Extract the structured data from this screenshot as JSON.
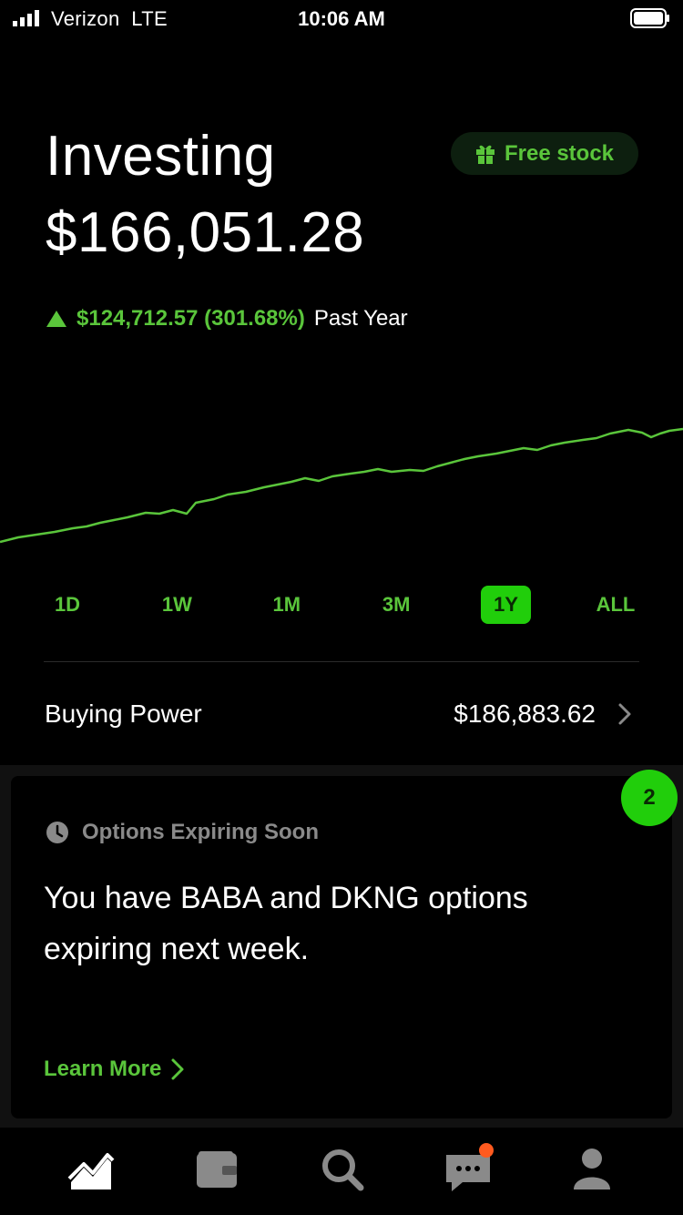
{
  "status_bar": {
    "carrier": "Verizon  LTE",
    "time": "10:06 AM"
  },
  "header": {
    "title": "Investing",
    "portfolio_value": "$166,051.28",
    "free_stock_label": "Free stock",
    "change_amount": "$124,712.57 (301.68%)",
    "change_period": "Past Year"
  },
  "chart_data": {
    "type": "line",
    "trend": "up",
    "color": "#5ac53b",
    "range": "1Y"
  },
  "range_tabs": [
    {
      "label": "1D",
      "active": false
    },
    {
      "label": "1W",
      "active": false
    },
    {
      "label": "1M",
      "active": false
    },
    {
      "label": "3M",
      "active": false
    },
    {
      "label": "1Y",
      "active": true
    },
    {
      "label": "ALL",
      "active": false
    }
  ],
  "buying_power": {
    "label": "Buying Power",
    "value": "$186,883.62"
  },
  "card": {
    "badge_count": "2",
    "heading": "Options Expiring Soon",
    "body": "You have BABA and DKNG options expiring next week.",
    "link_label": "Learn More"
  },
  "bottom_nav": [
    {
      "icon": "chart-icon"
    },
    {
      "icon": "wallet-icon"
    },
    {
      "icon": "search-icon"
    },
    {
      "icon": "messages-icon",
      "has_notification": true
    },
    {
      "icon": "account-icon"
    }
  ],
  "colors": {
    "accent": "#5ac53b",
    "accent_bright": "#21ce0b",
    "notification": "#ff5a1f"
  }
}
